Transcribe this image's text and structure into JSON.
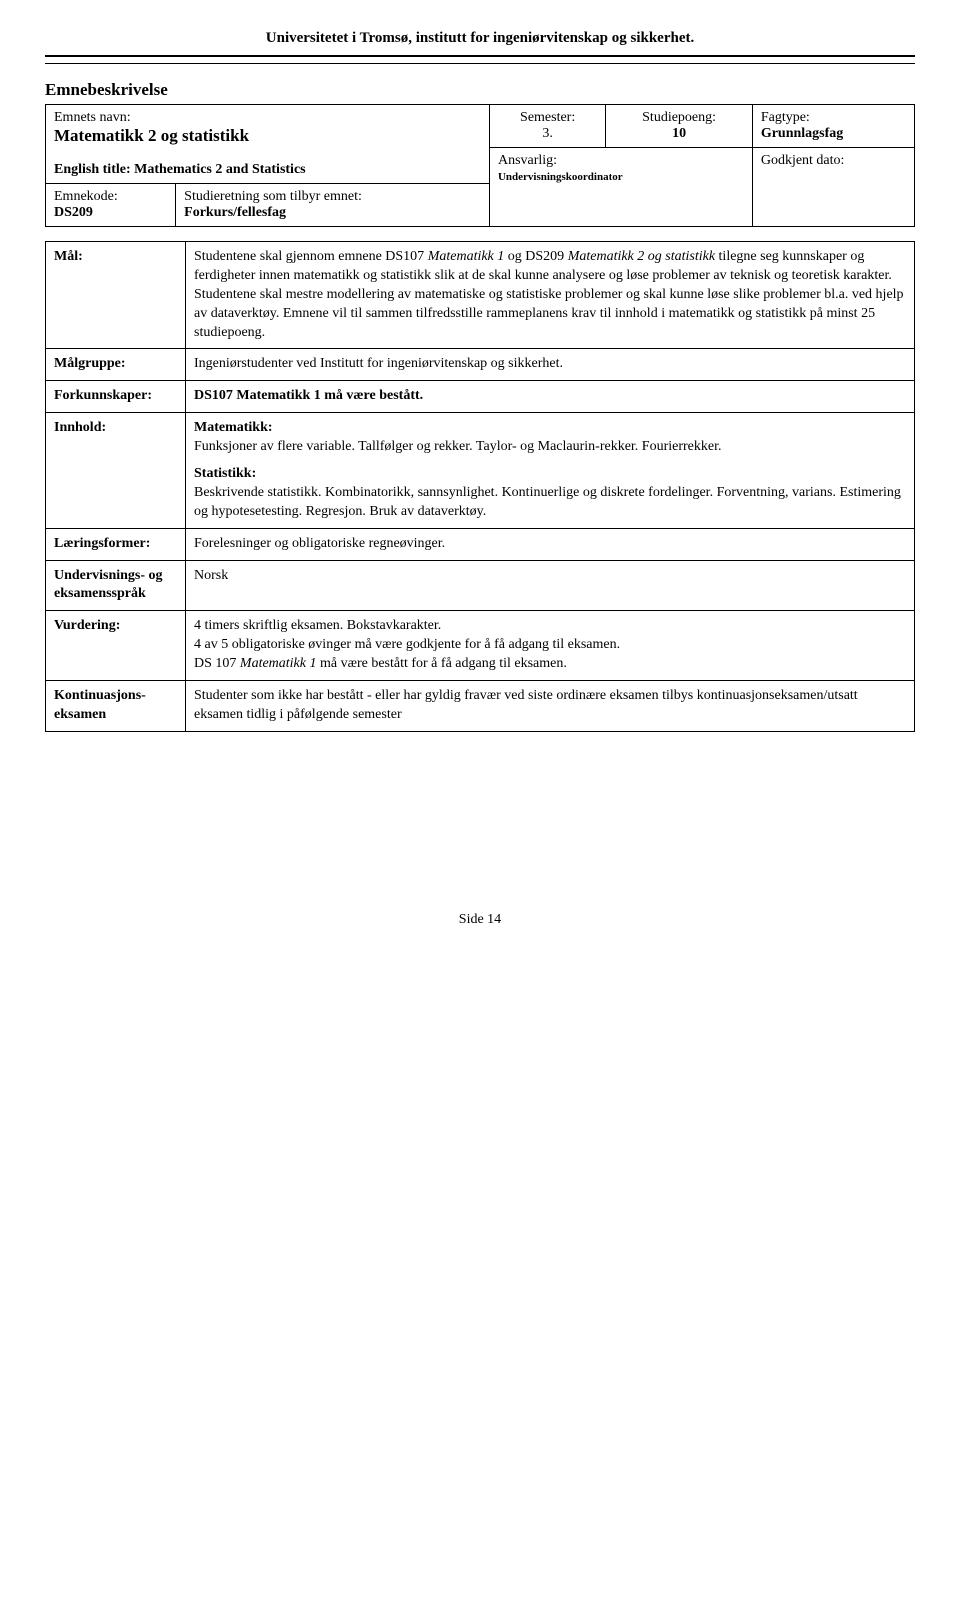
{
  "header": {
    "title": "Universitetet i Tromsø, institutt for ingeniørvitenskap og sikkerhet."
  },
  "section_title": "Emnebeskrivelse",
  "top": {
    "name_label": "Emnets navn:",
    "name_value": "Matematikk 2 og statistikk",
    "english_label": "English title:",
    "english_value": "Mathematics 2 and Statistics",
    "semester_label": "Semester:",
    "semester_value": "3.",
    "points_label": "Studiepoeng:",
    "points_value": "10",
    "fagtype_label": "Fagtype:",
    "fagtype_value": "Grunnlagsfag",
    "code_label": "Emnekode:",
    "code_value": "DS209",
    "direction_label": "Studieretning som tilbyr emnet:",
    "direction_value": "Forkurs/fellesfag",
    "responsible_label": "Ansvarlig:",
    "responsible_value": "Undervisningskoordinator",
    "approved_label": "Godkjent dato:"
  },
  "rows": {
    "maal": {
      "label": "Mål:",
      "t1": "Studentene skal gjennom emnene DS107 ",
      "i1": "Matematikk 1",
      "t2": " og DS209 ",
      "i2": "Matematikk 2 og statistikk",
      "t3": " tilegne seg kunnskaper og ferdigheter innen matematikk og statistikk slik at de skal kunne analysere og løse problemer av teknisk og teoretisk karakter. Studentene skal mestre modellering av matematiske og statistiske problemer og skal kunne løse slike problemer bl.a. ved hjelp av dataverktøy. Emnene vil til sammen tilfredsstille rammeplanens krav til innhold i matematikk og statistikk på minst 25 studiepoeng."
    },
    "maalgruppe": {
      "label": "Målgruppe:",
      "text": "Ingeniørstudenter ved Institutt for ingeniørvitenskap og sikkerhet."
    },
    "forkunn": {
      "label": "Forkunnskaper:",
      "text": "DS107 Matematikk 1 må være bestått."
    },
    "innhold": {
      "label": "Innhold:",
      "h1": "Matematikk:",
      "p1": "Funksjoner av flere variable. Tallfølger og rekker. Taylor- og Maclaurin-rekker. Fourierrekker.",
      "h2": "Statistikk:",
      "p2": "Beskrivende statistikk. Kombinatorikk, sannsynlighet. Kontinuerlige og diskrete fordelinger. Forventning, varians. Estimering og hypotesetesting. Regresjon. Bruk av dataverktøy."
    },
    "laering": {
      "label": "Læringsformer:",
      "text": "Forelesninger og obligatoriske regneøvinger."
    },
    "sprak": {
      "label": "Undervisnings- og eksamensspråk",
      "text": "Norsk"
    },
    "vurdering": {
      "label": "Vurdering:",
      "l1": "4 timers skriftlig eksamen. Bokstavkarakter.",
      "l2": "4 av 5 obligatoriske øvinger må være godkjente for å få adgang til eksamen.",
      "l3a": "DS 107 ",
      "l3i": "Matematikk 1",
      "l3b": " må være bestått for å få adgang til eksamen."
    },
    "kont": {
      "label": "Kontinuasjons-eksamen",
      "text": "Studenter som ikke har bestått - eller har gyldig fravær ved siste ordinære eksamen tilbys kontinuasjonseksamen/utsatt eksamen tidlig i påfølgende semester"
    }
  },
  "footer": "Side 14"
}
